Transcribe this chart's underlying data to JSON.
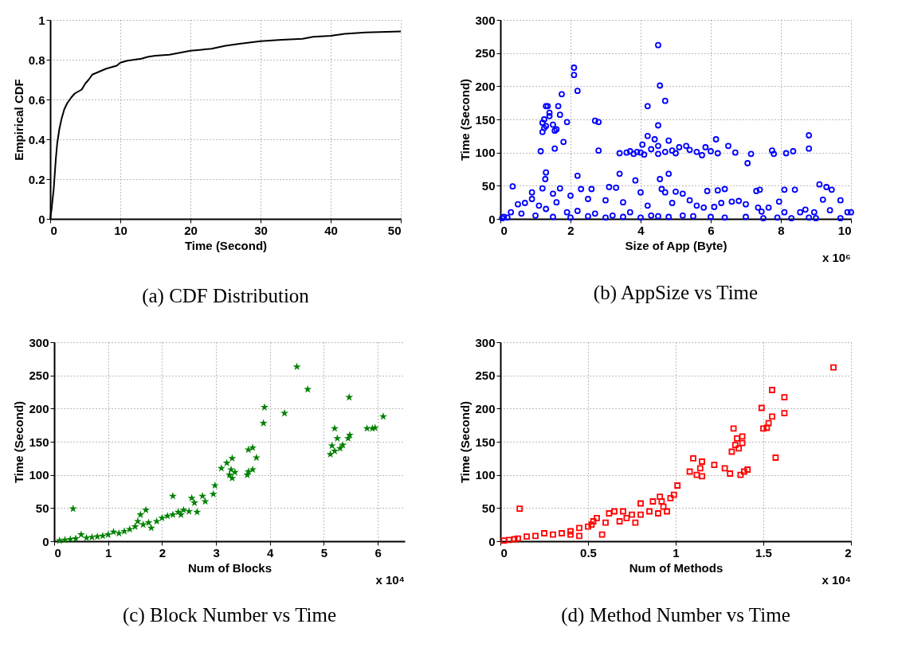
{
  "chart_data": [
    {
      "type": "line",
      "title": "(a) CDF Distribution",
      "xlabel": "Time (Second)",
      "ylabel": "Empirical CDF",
      "color": "#000000",
      "xlim": [
        0,
        50
      ],
      "xticks": [
        0,
        10,
        20,
        30,
        40,
        50
      ],
      "ylim": [
        0,
        1
      ],
      "yticks": [
        0,
        0.2,
        0.4,
        0.6,
        0.8,
        1
      ],
      "grid": true,
      "x": [
        0,
        0.2,
        0.5,
        0.8,
        1,
        1.3,
        1.6,
        2,
        2.4,
        3,
        3.5,
        4.5,
        5,
        5.5,
        6,
        7,
        8,
        9,
        9.5,
        10,
        11,
        12,
        13,
        14,
        15,
        17,
        20,
        23,
        25,
        27,
        30,
        33,
        36,
        37.5,
        40,
        42,
        45,
        50
      ],
      "values": [
        0,
        0.05,
        0.15,
        0.3,
        0.38,
        0.45,
        0.5,
        0.55,
        0.58,
        0.61,
        0.63,
        0.65,
        0.68,
        0.7,
        0.725,
        0.74,
        0.755,
        0.765,
        0.77,
        0.785,
        0.795,
        0.8,
        0.805,
        0.815,
        0.82,
        0.825,
        0.845,
        0.855,
        0.87,
        0.88,
        0.893,
        0.9,
        0.905,
        0.915,
        0.92,
        0.93,
        0.937,
        0.942
      ]
    },
    {
      "type": "scatter",
      "title": "(b) AppSize vs Time",
      "xlabel": "Size of App (Byte)",
      "ylabel": "Time (Second)",
      "color": "#0000ff",
      "marker": "circle",
      "xlim": [
        0,
        10
      ],
      "xticks": [
        0,
        2,
        4,
        6,
        8,
        10
      ],
      "ylim": [
        0,
        300
      ],
      "yticks": [
        0,
        50,
        100,
        150,
        200,
        250,
        300
      ],
      "grid": true,
      "annotations": [
        "x 10⁶"
      ],
      "x": [
        4.5,
        2.1,
        2.1,
        4.55,
        2.2,
        1.75,
        4.7,
        1.3,
        1.35,
        4.2,
        1.65,
        1.4,
        1.4,
        1.7,
        1.25,
        1.2,
        1.25,
        1.3,
        1.5,
        1.6,
        1.55,
        1.2,
        1.9,
        2.7,
        2.8,
        4.5,
        1.8,
        1.55,
        1.15,
        2.8,
        4.2,
        4.4,
        4.5,
        4.8,
        4.05,
        3.4,
        3.6,
        3.7,
        3.8,
        3.9,
        4.0,
        4.1,
        4.3,
        4.5,
        4.7,
        4.9,
        5.0,
        5.1,
        5.3,
        5.4,
        5.6,
        5.75,
        5.85,
        6.0,
        6.2,
        6.15,
        6.5,
        6.7,
        7.05,
        7.15,
        7.75,
        7.8,
        8.15,
        8.35,
        8.8,
        8.8,
        0.35,
        1.3,
        1.28,
        2.2,
        3.4,
        3.85,
        4.55,
        4.8,
        9.1,
        9.3,
        9.45,
        9.7,
        9.2,
        8.1,
        8.4,
        7.4,
        7.3,
        6.4,
        6.2,
        5.9,
        5.2,
        5.0,
        4.7,
        4.6,
        4.0,
        3.3,
        3.1,
        2.6,
        2.3,
        1.7,
        1.2,
        0.9,
        1.5,
        2.0,
        2.5,
        3.0,
        3.5,
        4.2,
        4.9,
        5.4,
        5.6,
        5.8,
        6.1,
        6.3,
        6.6,
        6.8,
        7.0,
        7.35,
        7.45,
        7.65,
        7.95,
        8.1,
        8.55,
        8.7,
        8.95,
        9.4,
        9.9,
        10,
        0.1,
        0.3,
        0.5,
        0.7,
        0.9,
        1.1,
        1.3,
        1.6,
        1.9,
        2.2,
        2.7,
        3.2,
        3.7,
        4.3,
        4.8,
        5.2,
        5.5,
        6.0,
        6.4,
        7.0,
        7.5,
        7.9,
        8.3,
        8.8,
        9.0,
        9.7,
        0.05,
        0.2,
        0.6,
        1.0,
        1.5,
        2.0,
        2.5,
        3.0,
        3.5,
        4.0,
        4.5
      ],
      "values": [
        262,
        228,
        217,
        201,
        193,
        188,
        178,
        170,
        170,
        170,
        170,
        160,
        155,
        157,
        150,
        145,
        137,
        140,
        142,
        135,
        133,
        131,
        146,
        148,
        146,
        141,
        116,
        106,
        102,
        103,
        125,
        120,
        110,
        118,
        112,
        99,
        100,
        102,
        98,
        101,
        100,
        97,
        105,
        98,
        101,
        103,
        99,
        108,
        110,
        104,
        101,
        96,
        108,
        102,
        99,
        120,
        110,
        100,
        84,
        98,
        103,
        98,
        99,
        102,
        126,
        106,
        49,
        70,
        60,
        65,
        68,
        58,
        60,
        68,
        52,
        48,
        44,
        28,
        29,
        44,
        44,
        44,
        42,
        45,
        43,
        42,
        38,
        41,
        40,
        45,
        40,
        47,
        48,
        45,
        45,
        46,
        46,
        40,
        38,
        35,
        30,
        28,
        25,
        20,
        24,
        28,
        20,
        17,
        18,
        24,
        26,
        27,
        22,
        17,
        11,
        17,
        26,
        10,
        10,
        14,
        10,
        13,
        10,
        10,
        3,
        10,
        22,
        24,
        30,
        20,
        15,
        25,
        10,
        12,
        8,
        5,
        10,
        5,
        3,
        5,
        4,
        3,
        2,
        3,
        1,
        2,
        1,
        2,
        1,
        1,
        1,
        2,
        8,
        5,
        3,
        2,
        4,
        2,
        3,
        2,
        4
      ]
    },
    {
      "type": "scatter",
      "title": "(c) Block Number vs Time",
      "xlabel": "Num of Blocks",
      "ylabel": "Time (Second)",
      "color": "#008000",
      "marker": "star",
      "xlim": [
        0,
        6.5
      ],
      "xticks": [
        0,
        1,
        2,
        3,
        4,
        5,
        6
      ],
      "ylim": [
        0,
        300
      ],
      "yticks": [
        0,
        50,
        100,
        150,
        200,
        250,
        300
      ],
      "grid": true,
      "annotations": [
        "x 10⁴"
      ],
      "x": [
        0.35,
        0.5,
        0.1,
        0.3,
        0.6,
        0.8,
        1.0,
        1.1,
        1.2,
        1.4,
        1.5,
        1.55,
        1.6,
        1.7,
        1.65,
        1.8,
        1.9,
        2.0,
        2.1,
        2.2,
        2.3,
        2.4,
        2.5,
        2.2,
        2.55,
        2.6,
        2.65,
        2.75,
        2.8,
        2.95,
        2.98,
        3.1,
        3.2,
        3.25,
        3.3,
        3.3,
        3.35,
        3.28,
        3.58,
        3.6,
        3.6,
        3.68,
        3.68,
        3.75,
        3.88,
        3.9,
        4.27,
        4.5,
        4.7,
        5.12,
        5.15,
        5.2,
        5.2,
        5.25,
        5.3,
        5.35,
        5.45,
        5.48,
        5.47,
        5.8,
        5.9,
        5.95,
        6.1,
        0.2,
        0.4,
        0.7,
        0.9,
        1.3,
        1.75,
        2.35
      ],
      "values": [
        49,
        10,
        1,
        3,
        5,
        7,
        10,
        14,
        12,
        18,
        22,
        30,
        40,
        47,
        25,
        20,
        30,
        35,
        38,
        40,
        44,
        47,
        45,
        68,
        65,
        58,
        44,
        68,
        60,
        71,
        84,
        110,
        118,
        100,
        95,
        125,
        104,
        108,
        100,
        105,
        138,
        141,
        108,
        126,
        178,
        202,
        193,
        263,
        229,
        131,
        144,
        136,
        170,
        155,
        140,
        145,
        155,
        160,
        217,
        170,
        170,
        171,
        188,
        2,
        4,
        6,
        8,
        15,
        28,
        40
      ]
    },
    {
      "type": "scatter",
      "title": "(d) Method Number vs Time",
      "xlabel": "Num of Methods",
      "ylabel": "Time (Second)",
      "color": "#ff0000",
      "marker": "square",
      "xlim": [
        0,
        2
      ],
      "xticks": [
        0,
        0.5,
        1,
        1.5,
        2
      ],
      "ylim": [
        0,
        300
      ],
      "yticks": [
        0,
        50,
        100,
        150,
        200,
        250,
        300
      ],
      "grid": true,
      "annotations": [
        "x 10⁴"
      ],
      "x": [
        0.11,
        0.05,
        0.1,
        0.15,
        0.2,
        0.25,
        0.3,
        0.35,
        0.4,
        0.45,
        0.5,
        0.52,
        0.55,
        0.58,
        0.6,
        0.62,
        0.65,
        0.68,
        0.7,
        0.72,
        0.75,
        0.77,
        0.8,
        0.8,
        0.85,
        0.87,
        0.9,
        0.91,
        0.92,
        0.93,
        0.95,
        0.97,
        0.99,
        1.01,
        1.08,
        1.1,
        1.12,
        1.14,
        1.15,
        1.15,
        1.22,
        1.28,
        1.31,
        1.32,
        1.33,
        1.34,
        1.35,
        1.36,
        1.38,
        1.38,
        1.37,
        1.39,
        1.41,
        1.49,
        1.5,
        1.52,
        1.53,
        1.55,
        1.55,
        1.57,
        1.62,
        1.62,
        1.9,
        0.02,
        0.08,
        0.4,
        0.45,
        0.53
      ],
      "values": [
        49,
        2,
        4,
        7,
        8,
        12,
        10,
        12,
        15,
        20,
        22,
        25,
        35,
        10,
        28,
        42,
        45,
        30,
        45,
        35,
        40,
        28,
        57,
        40,
        45,
        60,
        42,
        67,
        60,
        52,
        45,
        65,
        70,
        84,
        105,
        125,
        100,
        110,
        120,
        98,
        115,
        110,
        102,
        135,
        170,
        145,
        155,
        140,
        148,
        158,
        100,
        105,
        108,
        201,
        170,
        171,
        178,
        188,
        228,
        126,
        217,
        193,
        262,
        1,
        3,
        10,
        8,
        30
      ]
    }
  ]
}
